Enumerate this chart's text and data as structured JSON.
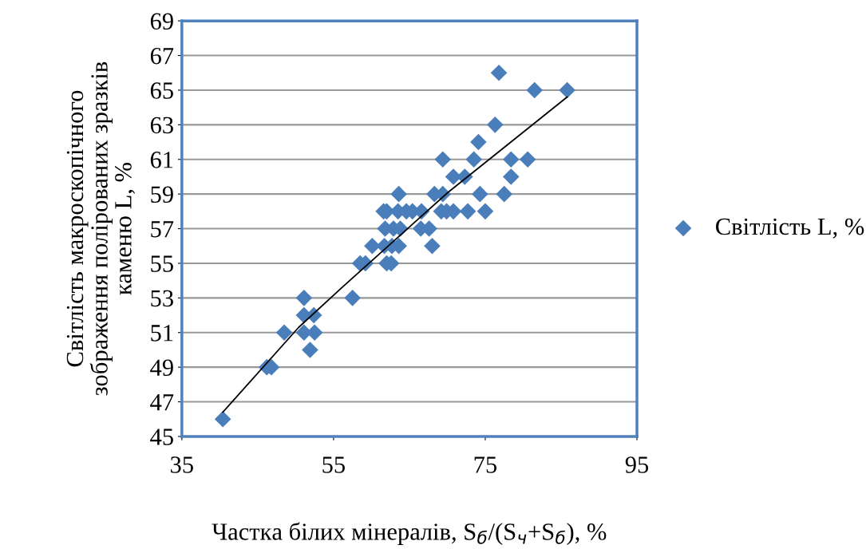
{
  "chart_data": {
    "type": "scatter",
    "xlabel": "Частка білих мінералів, S$_{б}$/(S$_{ч}$+S$_{б}$), %",
    "ylabel": "Світлість макроскопічного\nзображення полірованих зразків\nкаменю L, %",
    "xlim": [
      35,
      95
    ],
    "xticks": [
      35,
      55,
      75,
      95
    ],
    "ylim": [
      45,
      69
    ],
    "yticks": [
      45,
      47,
      49,
      51,
      53,
      55,
      57,
      59,
      61,
      63,
      65,
      67,
      69
    ],
    "grid": "y",
    "legend": "right",
    "marker": "diamond",
    "series": [
      {
        "name": "Світлість L, %",
        "color": "#4a7ebb",
        "x": [
          40.4,
          46.2,
          46.8,
          48.5,
          51.1,
          51.1,
          51.1,
          51.9,
          52.4,
          52.5,
          57.5,
          58.5,
          59.2,
          60.1,
          61.7,
          62.7,
          63.6,
          68.0,
          62.0,
          62.6,
          61.8,
          62.9,
          63.8,
          66.5,
          67.6,
          61.6,
          62.0,
          63.5,
          64.6,
          65.4,
          66.6,
          69.2,
          69.9,
          70.8,
          72.7,
          75.0,
          63.6,
          68.3,
          69.4,
          74.3,
          77.5,
          70.8,
          72.3,
          78.4,
          69.4,
          73.5,
          78.4,
          80.6,
          74.1,
          76.3,
          81.5,
          85.8,
          76.8
        ],
        "values": [
          46,
          49,
          49,
          51,
          53,
          52,
          51,
          50,
          52,
          51,
          53,
          55,
          55,
          56,
          56,
          56,
          56,
          56,
          55,
          55,
          57,
          57,
          57,
          57,
          57,
          58,
          58,
          58,
          58,
          58,
          58,
          58,
          58,
          58,
          58,
          58,
          59,
          59,
          59,
          59,
          59,
          60,
          60,
          60,
          61,
          61,
          61,
          61,
          62,
          63,
          65,
          65,
          66
        ]
      },
      {
        "type": "line",
        "color": "#000000",
        "marker": "none",
        "x": [
          40.4,
          50.4,
          56.1,
          70.1,
          85.8
        ],
        "values": [
          46.4,
          51.3,
          53.6,
          59.1,
          64.6
        ]
      }
    ]
  }
}
